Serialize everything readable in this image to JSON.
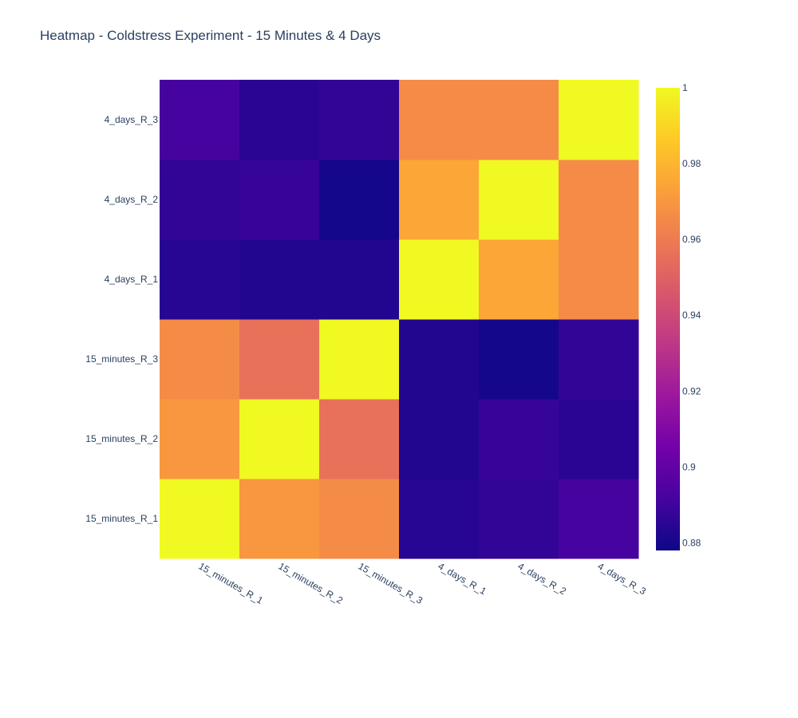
{
  "chart_data": {
    "type": "heatmap",
    "title": "Heatmap - Coldstress Experiment - 15 Minutes & 4 Days",
    "x_categories": [
      "15_minutes_R_1",
      "15_minutes_R_2",
      "15_minutes_R_3",
      "4_days_R_1",
      "4_days_R_2",
      "4_days_R_3"
    ],
    "y_categories": [
      "15_minutes_R_1",
      "15_minutes_R_2",
      "15_minutes_R_3",
      "4_days_R_1",
      "4_days_R_2",
      "4_days_R_3"
    ],
    "z": [
      [
        1.0,
        0.97,
        0.966,
        0.884,
        0.887,
        0.892
      ],
      [
        0.97,
        1.0,
        0.956,
        0.883,
        0.888,
        0.885
      ],
      [
        0.966,
        0.956,
        1.0,
        0.883,
        0.88,
        0.887
      ],
      [
        0.884,
        0.883,
        0.883,
        1.0,
        0.975,
        0.966
      ],
      [
        0.887,
        0.888,
        0.88,
        0.975,
        1.0,
        0.966
      ],
      [
        0.892,
        0.885,
        0.887,
        0.966,
        0.966,
        1.0
      ]
    ],
    "zmin": 0.878,
    "zmax": 1.0,
    "colorscale": "Plasma",
    "colorbar_ticks": [
      "0.88",
      "0.9",
      "0.92",
      "0.94",
      "0.96",
      "0.98",
      "1"
    ],
    "colorbar_tick_values": [
      0.88,
      0.9,
      0.92,
      0.94,
      0.96,
      0.98,
      1.0
    ],
    "legend": "colorbar-right"
  },
  "colors": {
    "plasma": [
      "#0d0887",
      "#46039f",
      "#7201a8",
      "#9c179e",
      "#bd3786",
      "#d8576b",
      "#ed7953",
      "#fb9f3a",
      "#fdca26",
      "#f0f921"
    ],
    "text": "#2a3f5f",
    "background": "#ffffff"
  }
}
